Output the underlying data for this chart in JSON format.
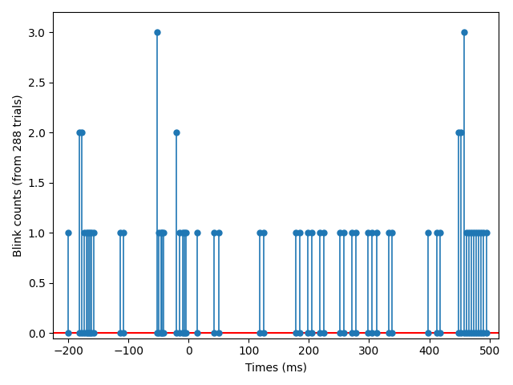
{
  "times": [
    -200,
    -182,
    -178,
    -173,
    -170,
    -167,
    -164,
    -161,
    -158,
    -113,
    -108,
    -52,
    -49,
    -46,
    -44,
    -41,
    -20,
    -15,
    -10,
    -7,
    -4,
    15,
    42,
    50,
    118,
    125,
    178,
    185,
    198,
    205,
    218,
    225,
    252,
    258,
    272,
    278,
    298,
    305,
    312,
    332,
    338,
    398,
    412,
    418,
    448,
    452,
    458,
    462,
    466,
    470,
    474,
    478,
    482,
    486,
    490,
    495
  ],
  "counts": [
    1,
    2,
    2,
    1,
    1,
    1,
    1,
    1,
    1,
    1,
    1,
    3,
    1,
    1,
    1,
    1,
    2,
    1,
    1,
    1,
    1,
    1,
    1,
    1,
    1,
    1,
    1,
    1,
    1,
    1,
    1,
    1,
    1,
    1,
    1,
    1,
    1,
    1,
    1,
    1,
    1,
    1,
    1,
    1,
    2,
    2,
    3,
    1,
    1,
    1,
    1,
    1,
    1,
    1,
    1,
    1
  ],
  "xlabel": "Times (ms)",
  "ylabel": "Blink counts (from 288 trials)",
  "xlim": [
    -225,
    515
  ],
  "ylim": [
    -0.05,
    3.2
  ],
  "stem_color": "#1f77b4",
  "baseline_color": "red",
  "marker_size": 5,
  "line_width": 1.2,
  "xticks": [
    -200,
    -100,
    0,
    100,
    200,
    300,
    400,
    500
  ],
  "yticks": [
    0.0,
    0.5,
    1.0,
    1.5,
    2.0,
    2.5,
    3.0
  ]
}
